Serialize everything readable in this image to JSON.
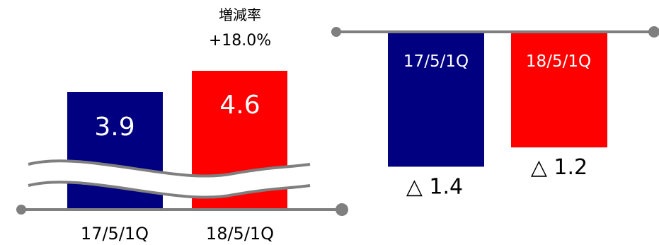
{
  "chart_data": [
    {
      "type": "bar",
      "categories": [
        "17/5/1Q",
        "18/5/1Q"
      ],
      "values": [
        3.9,
        4.6
      ],
      "value_labels": [
        "3.9",
        "4.6"
      ],
      "axis_break": true,
      "annotation": {
        "title": "増減率",
        "value": "+18.0%"
      },
      "colors": [
        "#000080",
        "#ff0000"
      ]
    },
    {
      "type": "bar",
      "categories": [
        "17/5/1Q",
        "18/5/1Q"
      ],
      "values": [
        -1.4,
        -1.2
      ],
      "value_labels": [
        "△ 1.4",
        "△ 1.2"
      ],
      "colors": [
        "#000080",
        "#ff0000"
      ]
    }
  ],
  "colors": {
    "axis": "#7f7f7f",
    "navy": "#000080",
    "red": "#ff0000"
  }
}
